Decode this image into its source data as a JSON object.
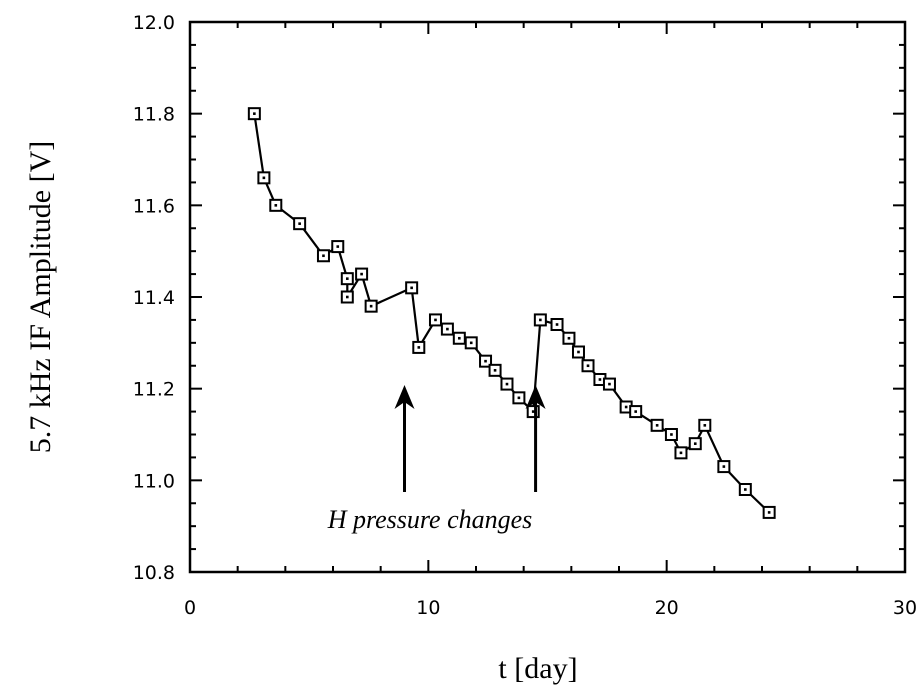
{
  "chart_data": {
    "type": "line",
    "xlabel": "t [day]",
    "ylabel": "5.7 kHz IF Amplitude [V]",
    "xlim": [
      0,
      30
    ],
    "ylim": [
      10.8,
      12.0
    ],
    "x_ticks": [
      "0",
      "10",
      "20",
      "30"
    ],
    "y_ticks": [
      "10.8",
      "11.0",
      "11.2",
      "11.4",
      "11.6",
      "11.8",
      "12.0"
    ],
    "grid": false,
    "series": [
      {
        "marker": "square",
        "color": "#000000",
        "points": [
          [
            2.7,
            11.8
          ],
          [
            3.1,
            11.66
          ],
          [
            3.6,
            11.6
          ],
          [
            4.6,
            11.56
          ],
          [
            5.6,
            11.49
          ],
          [
            6.2,
            11.51
          ],
          [
            6.6,
            11.44
          ],
          [
            6.6,
            11.4
          ],
          [
            7.2,
            11.45
          ],
          [
            7.6,
            11.38
          ],
          [
            9.3,
            11.42
          ],
          [
            9.6,
            11.29
          ],
          [
            10.3,
            11.35
          ],
          [
            10.8,
            11.33
          ],
          [
            11.3,
            11.31
          ],
          [
            11.8,
            11.3
          ],
          [
            12.4,
            11.26
          ],
          [
            12.8,
            11.24
          ],
          [
            13.3,
            11.21
          ],
          [
            13.8,
            11.18
          ],
          [
            14.4,
            11.15
          ],
          [
            14.7,
            11.35
          ],
          [
            15.4,
            11.34
          ],
          [
            15.9,
            11.31
          ],
          [
            16.3,
            11.28
          ],
          [
            16.7,
            11.25
          ],
          [
            17.2,
            11.22
          ],
          [
            17.6,
            11.21
          ],
          [
            18.3,
            11.16
          ],
          [
            18.7,
            11.15
          ],
          [
            19.6,
            11.12
          ],
          [
            20.2,
            11.1
          ],
          [
            20.6,
            11.06
          ],
          [
            21.2,
            11.08
          ],
          [
            21.6,
            11.12
          ],
          [
            22.4,
            11.03
          ],
          [
            23.3,
            10.98
          ],
          [
            24.3,
            10.93
          ]
        ]
      }
    ],
    "annotations": [
      {
        "text": "H pressure changes",
        "arrows_at_x": [
          9.0,
          14.5
        ]
      }
    ]
  }
}
